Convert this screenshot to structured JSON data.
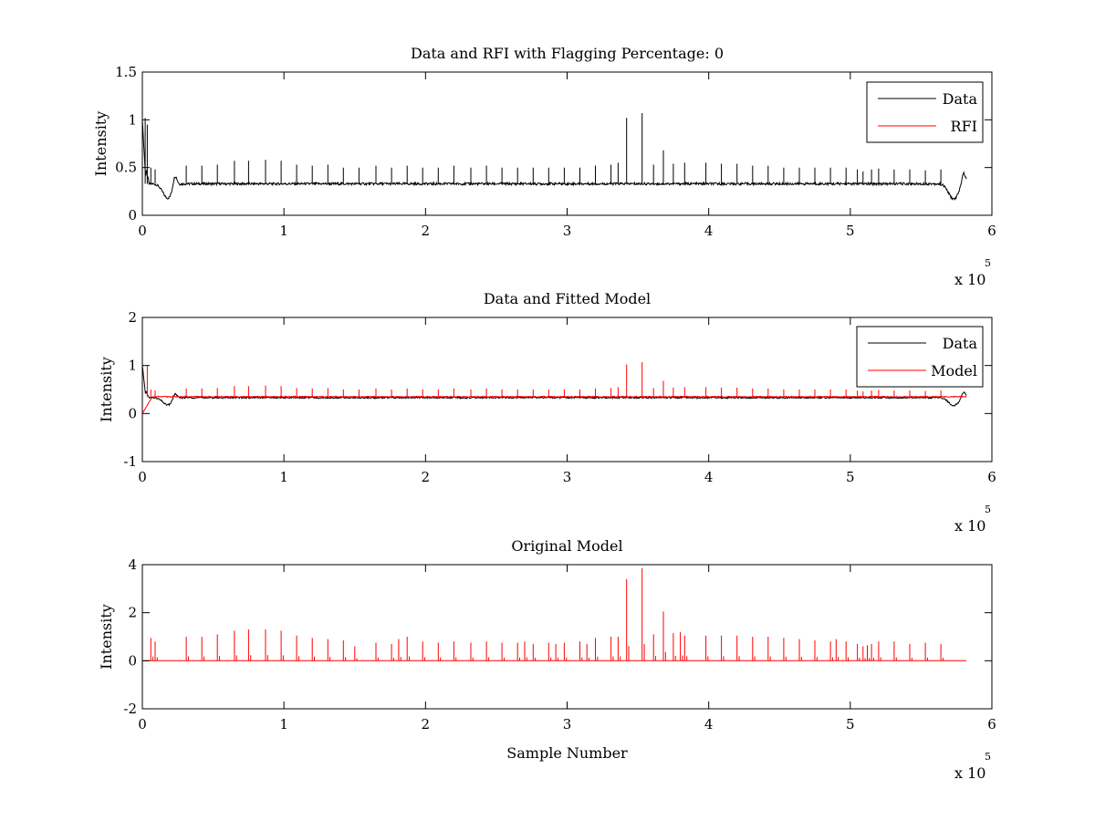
{
  "chart_data": [
    {
      "type": "line",
      "title": "Data and RFI with Flagging Percentage: 0",
      "xlabel": "",
      "ylabel": "Intensity",
      "xlim": [
        0,
        600000
      ],
      "ylim": [
        0,
        1.5
      ],
      "xticks": [
        0,
        1,
        2,
        3,
        4,
        5,
        6
      ],
      "yticks": [
        0,
        0.5,
        1,
        1.5
      ],
      "x_exponent_base": "x 10",
      "x_exponent_power": "5",
      "grid": false,
      "legend": "top-right",
      "series": [
        {
          "name": "Data",
          "color": "#000000",
          "baseline": 0.33,
          "spike_positions": [
            2000,
            3500,
            6000,
            9000,
            31000,
            42000,
            53000,
            65000,
            75000,
            87000,
            98000,
            109000,
            120000,
            131000,
            142000,
            153000,
            165000,
            176000,
            187000,
            198000,
            209000,
            220000,
            232000,
            243000,
            254000,
            265000,
            276000,
            287000,
            298000,
            309000,
            320000,
            331000,
            336000,
            342000,
            353000,
            361000,
            368000,
            375000,
            383000,
            398000,
            409000,
            420000,
            431000,
            442000,
            453000,
            464000,
            475000,
            486000,
            497000,
            505000,
            509000,
            515000,
            520000,
            531000,
            542000,
            553000,
            564000
          ],
          "spike_peaks": [
            1.02,
            0.95,
            0.5,
            0.48,
            0.52,
            0.52,
            0.53,
            0.57,
            0.57,
            0.58,
            0.57,
            0.53,
            0.52,
            0.53,
            0.5,
            0.5,
            0.52,
            0.5,
            0.52,
            0.5,
            0.5,
            0.52,
            0.5,
            0.52,
            0.5,
            0.5,
            0.5,
            0.5,
            0.5,
            0.5,
            0.52,
            0.53,
            0.55,
            1.02,
            1.07,
            0.53,
            0.68,
            0.54,
            0.55,
            0.55,
            0.54,
            0.54,
            0.52,
            0.52,
            0.5,
            0.5,
            0.5,
            0.5,
            0.5,
            0.48,
            0.46,
            0.48,
            0.49,
            0.48,
            0.48,
            0.47,
            0.48
          ],
          "dips": [
            {
              "x": 18000,
              "y": 0.18
            },
            {
              "x": 573000,
              "y": 0.17
            }
          ],
          "end_bumps": [
            {
              "x": 23000,
              "y": 0.46
            },
            {
              "x": 580000,
              "y": 0.46
            }
          ]
        },
        {
          "name": "RFI",
          "color": "#ff0000"
        }
      ]
    },
    {
      "type": "line",
      "title": "Data and Fitted Model",
      "xlabel": "",
      "ylabel": "Intensity",
      "xlim": [
        0,
        600000
      ],
      "ylim": [
        -1,
        2
      ],
      "xticks": [
        0,
        1,
        2,
        3,
        4,
        5,
        6
      ],
      "yticks": [
        -1,
        0,
        1,
        2
      ],
      "x_exponent_base": "x 10",
      "x_exponent_power": "5",
      "grid": false,
      "legend": "top-right",
      "series": [
        {
          "name": "Data",
          "color": "#000000",
          "baseline": 0.33
        },
        {
          "name": "Model",
          "color": "#ff0000",
          "baseline": 0.35,
          "spike_positions": [
            3500,
            6000,
            9000,
            31000,
            42000,
            53000,
            65000,
            75000,
            87000,
            98000,
            109000,
            120000,
            131000,
            142000,
            153000,
            165000,
            176000,
            187000,
            198000,
            209000,
            220000,
            232000,
            243000,
            254000,
            265000,
            276000,
            287000,
            298000,
            309000,
            320000,
            331000,
            336000,
            342000,
            353000,
            361000,
            368000,
            375000,
            383000,
            398000,
            409000,
            420000,
            431000,
            442000,
            453000,
            464000,
            475000,
            486000,
            497000,
            505000,
            509000,
            515000,
            520000,
            531000,
            542000,
            553000,
            564000
          ],
          "spike_peaks": [
            1.0,
            0.5,
            0.48,
            0.52,
            0.52,
            0.53,
            0.57,
            0.57,
            0.58,
            0.57,
            0.53,
            0.52,
            0.53,
            0.5,
            0.5,
            0.52,
            0.5,
            0.52,
            0.5,
            0.5,
            0.52,
            0.5,
            0.52,
            0.5,
            0.5,
            0.5,
            0.5,
            0.5,
            0.5,
            0.52,
            0.53,
            0.55,
            1.02,
            1.07,
            0.53,
            0.68,
            0.54,
            0.55,
            0.55,
            0.54,
            0.54,
            0.52,
            0.52,
            0.5,
            0.5,
            0.5,
            0.5,
            0.5,
            0.48,
            0.46,
            0.48,
            0.49,
            0.48,
            0.48,
            0.47,
            0.48
          ]
        }
      ]
    },
    {
      "type": "line",
      "title": "Original Model",
      "xlabel": "Sample Number",
      "ylabel": "Intensity",
      "xlim": [
        0,
        600000
      ],
      "ylim": [
        -2,
        4
      ],
      "xticks": [
        0,
        1,
        2,
        3,
        4,
        5,
        6
      ],
      "yticks": [
        -2,
        0,
        2,
        4
      ],
      "x_exponent_base": "x 10",
      "x_exponent_power": "5",
      "grid": false,
      "legend": "none",
      "series": [
        {
          "name": "",
          "color": "#ff0000",
          "baseline": 0,
          "spike_positions": [
            6000,
            9000,
            31000,
            42000,
            53000,
            65000,
            75000,
            87000,
            98000,
            109000,
            120000,
            131000,
            142000,
            150000,
            165000,
            176000,
            181000,
            187000,
            198000,
            209000,
            220000,
            232000,
            243000,
            254000,
            265000,
            270000,
            276000,
            287000,
            292000,
            298000,
            309000,
            314000,
            320000,
            331000,
            336000,
            342000,
            353000,
            361000,
            368000,
            375000,
            380000,
            383000,
            398000,
            409000,
            420000,
            431000,
            442000,
            453000,
            464000,
            475000,
            486000,
            490000,
            497000,
            505000,
            509000,
            512000,
            515000,
            520000,
            531000,
            542000,
            553000,
            564000
          ],
          "spike_peaks": [
            0.95,
            0.8,
            1.0,
            1.0,
            1.1,
            1.25,
            1.3,
            1.3,
            1.25,
            1.05,
            0.95,
            0.9,
            0.85,
            0.6,
            0.75,
            0.7,
            0.9,
            1.0,
            0.8,
            0.75,
            0.8,
            0.75,
            0.8,
            0.75,
            0.75,
            0.8,
            0.7,
            0.75,
            0.7,
            0.75,
            0.8,
            0.7,
            0.95,
            1.0,
            1.0,
            3.4,
            3.85,
            1.1,
            2.05,
            1.15,
            1.2,
            1.05,
            1.05,
            1.05,
            1.05,
            1.0,
            1.0,
            0.95,
            0.9,
            0.85,
            0.8,
            0.9,
            0.8,
            0.7,
            0.6,
            0.65,
            0.7,
            0.8,
            0.8,
            0.7,
            0.75,
            0.7
          ]
        }
      ]
    }
  ]
}
